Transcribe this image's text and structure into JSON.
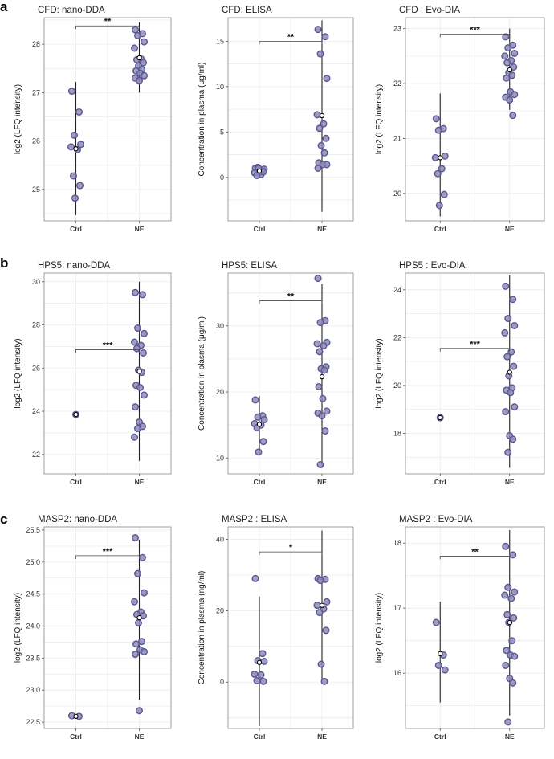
{
  "panel_letters": [
    "a",
    "b",
    "c"
  ],
  "colors": {
    "point_fill": "#8e8bb8",
    "point_stroke": "#5a5791",
    "grid": "#ececec",
    "frame": "#888888",
    "line": "#222222"
  },
  "chart_data": [
    {
      "type": "scatter",
      "row": 0,
      "col": 0,
      "title": "CFD: nano-DDA",
      "ylabel": "log2 (LFQ intensity)",
      "categories": [
        "Ctrl",
        "NE"
      ],
      "ylim": [
        24.35,
        28.55
      ],
      "yticks": [
        25,
        26,
        27,
        28
      ],
      "ytick_labels": [
        "25",
        "26",
        "27",
        "28"
      ],
      "grid_step": 0.5,
      "series": [
        {
          "name": "Ctrl",
          "values": [
            27.03,
            26.6,
            26.12,
            25.93,
            25.88,
            25.82,
            25.28,
            25.08,
            24.82
          ],
          "mean": 25.84,
          "range": [
            24.47,
            27.22
          ]
        },
        {
          "name": "NE",
          "values": [
            28.3,
            28.22,
            28.18,
            28.05,
            27.92,
            27.7,
            27.68,
            27.62,
            27.55,
            27.48,
            27.45,
            27.4,
            27.35,
            27.3,
            27.25
          ],
          "mean": 27.72,
          "range": [
            27.0,
            28.45
          ]
        }
      ],
      "significance": {
        "label": "**",
        "value": 28.38
      }
    },
    {
      "type": "scatter",
      "row": 0,
      "col": 1,
      "title": "CFD: ELISA",
      "ylabel": "Concentration in plasma (μg/ml)",
      "categories": [
        "Ctrl",
        "NE"
      ],
      "ylim": [
        -4.8,
        17.6
      ],
      "yticks": [
        0,
        5,
        10,
        15
      ],
      "ytick_labels": [
        "0",
        "5",
        "10",
        "15"
      ],
      "grid_step": 2.5,
      "series": [
        {
          "name": "Ctrl",
          "values": [
            1.0,
            0.8,
            1.1,
            0.9,
            0.5,
            0.3,
            0.2,
            0.6,
            1.0
          ],
          "mean": 0.7,
          "range": [
            0.2,
            1.2
          ]
        },
        {
          "name": "NE",
          "values": [
            16.3,
            15.5,
            13.6,
            10.9,
            6.9,
            5.9,
            5.4,
            4.3,
            3.5,
            2.7,
            1.6,
            1.4,
            1.4,
            1.0
          ],
          "mean": 6.8,
          "range": [
            -3.8,
            17.3
          ]
        }
      ],
      "significance": {
        "label": "**",
        "value": 15.0
      }
    },
    {
      "type": "scatter",
      "row": 0,
      "col": 2,
      "title": "CFD : Evo-DIA",
      "ylabel": "log2 (LFQ intensity)",
      "categories": [
        "Ctrl",
        "NE"
      ],
      "ylim": [
        19.5,
        23.2
      ],
      "yticks": [
        20,
        21,
        22,
        23
      ],
      "ytick_labels": [
        "20",
        "21",
        "22",
        "23"
      ],
      "grid_step": 0.5,
      "series": [
        {
          "name": "Ctrl",
          "values": [
            21.36,
            21.18,
            21.15,
            20.68,
            20.65,
            20.45,
            20.36,
            19.98,
            19.78
          ],
          "mean": 20.65,
          "range": [
            19.58,
            21.82
          ]
        },
        {
          "name": "NE",
          "values": [
            22.85,
            22.7,
            22.65,
            22.55,
            22.5,
            22.42,
            22.38,
            22.3,
            22.2,
            22.15,
            22.1,
            21.85,
            21.8,
            21.75,
            21.7,
            21.42
          ],
          "mean": 22.25,
          "range": [
            21.52,
            23.0
          ]
        }
      ],
      "significance": {
        "label": "***",
        "value": 22.9
      }
    },
    {
      "type": "scatter",
      "row": 1,
      "col": 0,
      "title": "HPS5: nano-DDA",
      "ylabel": "log2 (LFQ intensity)",
      "categories": [
        "Ctrl",
        "NE"
      ],
      "ylim": [
        21.1,
        30.4
      ],
      "yticks": [
        22,
        24,
        26,
        28,
        30
      ],
      "ytick_labels": [
        "22",
        "24",
        "26",
        "28",
        "30"
      ],
      "grid_step": 1,
      "series": [
        {
          "name": "Ctrl",
          "values": [
            23.85
          ],
          "mean": 23.85,
          "range": [
            23.8,
            23.9
          ]
        },
        {
          "name": "NE",
          "values": [
            29.5,
            29.4,
            27.85,
            27.6,
            27.2,
            27.05,
            26.9,
            26.7,
            25.9,
            25.8,
            25.2,
            25.1,
            24.75,
            24.2,
            23.5,
            23.3,
            23.2,
            22.8
          ],
          "mean": 25.85,
          "range": [
            21.7,
            30.0
          ]
        }
      ],
      "significance": {
        "label": "***",
        "value": 26.85
      }
    },
    {
      "type": "scatter",
      "row": 1,
      "col": 1,
      "title": "HPS5: ELISA",
      "ylabel": "Concentration in plasma (μg/ml)",
      "categories": [
        "Ctrl",
        "NE"
      ],
      "ylim": [
        7.6,
        38.0
      ],
      "yticks": [
        10,
        20,
        30
      ],
      "ytick_labels": [
        "10",
        "20",
        "30"
      ],
      "grid_step": 5,
      "series": [
        {
          "name": "Ctrl",
          "values": [
            18.8,
            16.4,
            16.2,
            15.8,
            15.2,
            15.0,
            14.6,
            12.5,
            10.9
          ],
          "mean": 15.1,
          "range": [
            10.5,
            19.4
          ]
        },
        {
          "name": "NE",
          "values": [
            37.2,
            30.8,
            30.5,
            27.5,
            27.3,
            27.0,
            26.1,
            23.8,
            23.5,
            23.3,
            20.8,
            19.0,
            17.1,
            16.8,
            16.4,
            14.1,
            9.0
          ],
          "mean": 22.3,
          "range": [
            8.5,
            36.3
          ]
        }
      ],
      "significance": {
        "label": "**",
        "value": 33.8
      }
    },
    {
      "type": "scatter",
      "row": 1,
      "col": 2,
      "title": "HPS5 : Evo-DIA",
      "ylabel": "log2 (LFQ intensity)",
      "categories": [
        "Ctrl",
        "NE"
      ],
      "ylim": [
        16.3,
        24.7
      ],
      "yticks": [
        18,
        20,
        22,
        24
      ],
      "ytick_labels": [
        "18",
        "20",
        "22",
        "24"
      ],
      "grid_step": 1,
      "series": [
        {
          "name": "Ctrl",
          "values": [
            18.65
          ],
          "mean": 18.65,
          "range": [
            18.6,
            18.7
          ]
        },
        {
          "name": "NE",
          "values": [
            24.15,
            23.6,
            22.8,
            22.5,
            22.2,
            21.4,
            21.2,
            20.8,
            20.4,
            19.9,
            19.8,
            19.7,
            19.1,
            18.9,
            17.9,
            17.75,
            17.2
          ],
          "mean": 20.55,
          "range": [
            16.55,
            24.6
          ]
        }
      ],
      "significance": {
        "label": "***",
        "value": 21.55
      }
    },
    {
      "type": "scatter",
      "row": 2,
      "col": 0,
      "title": "MASP2: nano-DDA",
      "ylabel": "log2 (LFQ intensity)",
      "categories": [
        "Ctrl",
        "NE"
      ],
      "ylim": [
        22.4,
        25.55
      ],
      "yticks": [
        22.5,
        23.0,
        23.5,
        24.0,
        24.5,
        25.0,
        25.5
      ],
      "ytick_labels": [
        "22.5",
        "23.0",
        "23.5",
        "24.0",
        "24.5",
        "25.0",
        "25.5"
      ],
      "grid_step": 0.25,
      "series": [
        {
          "name": "Ctrl",
          "values": [
            22.6,
            22.59
          ],
          "mean": 22.59,
          "range": [
            22.58,
            22.62
          ]
        },
        {
          "name": "NE",
          "values": [
            25.38,
            25.07,
            24.82,
            24.52,
            24.38,
            24.22,
            24.18,
            24.16,
            24.05,
            23.76,
            23.72,
            23.63,
            23.6,
            23.56,
            22.68
          ],
          "mean": 24.13,
          "range": [
            22.85,
            25.35
          ]
        }
      ],
      "significance": {
        "label": "***",
        "value": 25.1
      }
    },
    {
      "type": "scatter",
      "row": 2,
      "col": 1,
      "title": "MASP2 : ELISA",
      "ylabel": "Concentration in plasma (ng/ml)",
      "categories": [
        "Ctrl",
        "NE"
      ],
      "ylim": [
        -13.0,
        43.5
      ],
      "yticks": [
        0,
        20,
        40
      ],
      "ytick_labels": [
        "0",
        "20",
        "40"
      ],
      "grid_step": 10,
      "series": [
        {
          "name": "Ctrl",
          "values": [
            29.0,
            8.0,
            6.0,
            5.8,
            2.2,
            2.0,
            0.4,
            0.2
          ],
          "mean": 5.5,
          "range": [
            -12.3,
            24.0
          ]
        },
        {
          "name": "NE",
          "values": [
            29.0,
            28.8,
            28.5,
            22.5,
            21.5,
            20.5,
            19.5,
            14.5,
            5.0,
            0.2
          ],
          "mean": 21.5,
          "range": [
            0.2,
            42.5
          ]
        }
      ],
      "significance": {
        "label": "*",
        "value": 36.5
      }
    },
    {
      "type": "scatter",
      "row": 2,
      "col": 2,
      "title": "MASP2 : Evo-DIA",
      "ylabel": "log2 (LFQ intensity)",
      "categories": [
        "Ctrl",
        "NE"
      ],
      "ylim": [
        15.15,
        18.25
      ],
      "yticks": [
        16,
        17,
        18
      ],
      "ytick_labels": [
        "16",
        "17",
        "18"
      ],
      "grid_step": 0.5,
      "series": [
        {
          "name": "Ctrl",
          "values": [
            16.78,
            16.28,
            16.12,
            16.05
          ],
          "mean": 16.3,
          "range": [
            15.55,
            17.1
          ]
        },
        {
          "name": "NE",
          "values": [
            17.95,
            17.82,
            17.32,
            17.25,
            17.2,
            17.15,
            16.9,
            16.85,
            16.78,
            16.5,
            16.35,
            16.28,
            16.26,
            16.12,
            15.92,
            15.85,
            15.25
          ],
          "mean": 16.78,
          "range": [
            15.35,
            18.2
          ]
        }
      ],
      "significance": {
        "label": "**",
        "value": 17.8
      }
    }
  ]
}
